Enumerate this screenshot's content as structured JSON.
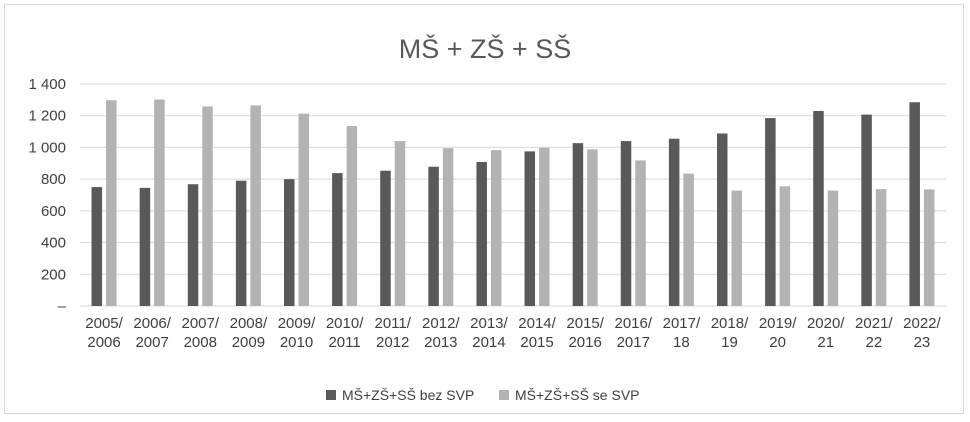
{
  "chart_data": {
    "type": "bar",
    "title": "MŠ + ZŠ + SŠ",
    "categories": [
      [
        "2005/",
        "2006"
      ],
      [
        "2006/",
        "2007"
      ],
      [
        "2007/",
        "2008"
      ],
      [
        "2008/",
        "2009"
      ],
      [
        "2009/",
        "2010"
      ],
      [
        "2010/",
        "2011"
      ],
      [
        "2011/",
        "2012"
      ],
      [
        "2012/",
        "2013"
      ],
      [
        "2013/",
        "2014"
      ],
      [
        "2014/",
        "2015"
      ],
      [
        "2015/",
        "2016"
      ],
      [
        "2016/",
        "2017"
      ],
      [
        "2017/",
        "18"
      ],
      [
        "2018/",
        "19"
      ],
      [
        "2019/",
        "20"
      ],
      [
        "2020/",
        "21"
      ],
      [
        "2021/",
        "22"
      ],
      [
        "2022/",
        "23"
      ]
    ],
    "series": [
      {
        "name": "MŠ+ZŠ+SŠ bez SVP",
        "color": "#595959",
        "values": [
          750,
          745,
          768,
          790,
          800,
          838,
          853,
          878,
          908,
          975,
          1027,
          1040,
          1055,
          1088,
          1185,
          1230,
          1207,
          1285
        ]
      },
      {
        "name": "MŠ+ZŠ+SŠ se SVP",
        "color": "#b3b3b3",
        "values": [
          1298,
          1302,
          1258,
          1265,
          1213,
          1135,
          1040,
          995,
          983,
          998,
          988,
          918,
          835,
          728,
          755,
          728,
          737,
          735
        ]
      }
    ],
    "yticks": [
      "1 400",
      "1 200",
      "1 000",
      "800",
      "600",
      "400",
      "200",
      "–"
    ],
    "ylim": [
      0,
      1400
    ],
    "grid": true,
    "legend": "bottom-center"
  }
}
